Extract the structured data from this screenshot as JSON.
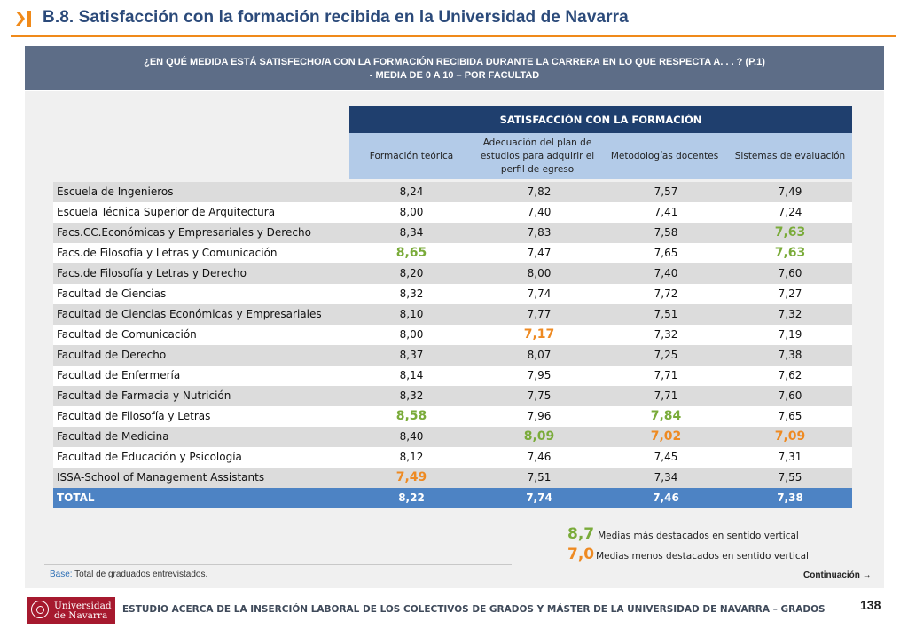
{
  "header": {
    "title": "B.8. Satisfacción con la formación recibida en la Universidad de Navarra",
    "accent": "#f08a1a",
    "title_color": "#2b4a7a"
  },
  "question": {
    "line1": "¿EN QUÉ MEDIDA ESTÁ SATISFECHO/A CON LA FORMACIÓN RECIBIDA DURANTE LA CARRERA EN LO QUE RESPECTA A. . . ? (P.1)",
    "line2": "- MEDIA DE 0 A 10 – POR FACULTAD"
  },
  "table": {
    "block_header": "SATISFACCIÓN CON LA FORMACIÓN",
    "columns": [
      "Formación teórica",
      "Adecuación del plan de estudios para adquirir el perfil de egreso",
      "Metodologías docentes",
      "Sistemas de evaluación"
    ],
    "rows": [
      {
        "name": "Escuela de Ingenieros",
        "values": [
          "8,24",
          "7,82",
          "7,57",
          "7,49"
        ],
        "marks": [
          "",
          "",
          "",
          ""
        ]
      },
      {
        "name": "Escuela Técnica Superior de Arquitectura",
        "values": [
          "8,00",
          "7,40",
          "7,41",
          "7,24"
        ],
        "marks": [
          "",
          "",
          "",
          ""
        ]
      },
      {
        "name": "Facs.CC.Económicas y Empresariales y Derecho",
        "values": [
          "8,34",
          "7,83",
          "7,58",
          "7,63"
        ],
        "marks": [
          "",
          "",
          "",
          "hi"
        ]
      },
      {
        "name": "Facs.de Filosofía y Letras y Comunicación",
        "values": [
          "8,65",
          "7,47",
          "7,65",
          "7,63"
        ],
        "marks": [
          "hi",
          "",
          "",
          "hi"
        ]
      },
      {
        "name": "Facs.de Filosofía y Letras y Derecho",
        "values": [
          "8,20",
          "8,00",
          "7,40",
          "7,60"
        ],
        "marks": [
          "",
          "",
          "",
          ""
        ]
      },
      {
        "name": "Facultad de Ciencias",
        "values": [
          "8,32",
          "7,74",
          "7,72",
          "7,27"
        ],
        "marks": [
          "",
          "",
          "",
          ""
        ]
      },
      {
        "name": "Facultad de Ciencias Económicas y Empresariales",
        "values": [
          "8,10",
          "7,77",
          "7,51",
          "7,32"
        ],
        "marks": [
          "",
          "",
          "",
          ""
        ]
      },
      {
        "name": "Facultad de Comunicación",
        "values": [
          "8,00",
          "7,17",
          "7,32",
          "7,19"
        ],
        "marks": [
          "",
          "lo",
          "",
          ""
        ]
      },
      {
        "name": "Facultad de Derecho",
        "values": [
          "8,37",
          "8,07",
          "7,25",
          "7,38"
        ],
        "marks": [
          "",
          "",
          "",
          ""
        ]
      },
      {
        "name": "Facultad de Enfermería",
        "values": [
          "8,14",
          "7,95",
          "7,71",
          "7,62"
        ],
        "marks": [
          "",
          "",
          "",
          ""
        ]
      },
      {
        "name": "Facultad de Farmacia y Nutrición",
        "values": [
          "8,32",
          "7,75",
          "7,71",
          "7,60"
        ],
        "marks": [
          "",
          "",
          "",
          ""
        ]
      },
      {
        "name": "Facultad de Filosofía y Letras",
        "values": [
          "8,58",
          "7,96",
          "7,84",
          "7,65"
        ],
        "marks": [
          "hi",
          "",
          "hi",
          ""
        ]
      },
      {
        "name": "Facultad de Medicina",
        "values": [
          "8,40",
          "8,09",
          "7,02",
          "7,09"
        ],
        "marks": [
          "",
          "hi",
          "lo",
          "lo"
        ]
      },
      {
        "name": "Facultad de Educación y Psicología",
        "values": [
          "8,12",
          "7,46",
          "7,45",
          "7,31"
        ],
        "marks": [
          "",
          "",
          "",
          ""
        ]
      },
      {
        "name": "ISSA-School of Management Assistants",
        "values": [
          "7,49",
          "7,51",
          "7,34",
          "7,55"
        ],
        "marks": [
          "lo",
          "",
          "",
          ""
        ]
      }
    ],
    "total": {
      "name": "TOTAL",
      "values": [
        "8,22",
        "7,74",
        "7,46",
        "7,38"
      ]
    },
    "colors": {
      "high": "#7aab3a",
      "low": "#ee8a22",
      "total_bg": "#4d83c4",
      "block_bg": "#1f3f6e",
      "subheader_bg": "#b3cbe8"
    }
  },
  "legend": {
    "high_value": "8,7",
    "high_text": "Medias más destacados en sentido vertical",
    "low_value": "7,0",
    "low_text": "Medias menos destacados en sentido vertical"
  },
  "base": {
    "label": "Base:",
    "text": " Total de graduados entrevistados."
  },
  "continuation": "Continuación",
  "continuation_arrow": "→",
  "footer": {
    "logo_line1": "Universidad",
    "logo_line2": "de Navarra",
    "text": "ESTUDIO ACERCA DE LA INSERCIÓN LABORAL DE LOS COLECTIVOS DE GRADOS Y MÁSTER DE LA UNIVERSIDAD DE NAVARRA – GRADOS",
    "page": "138"
  }
}
